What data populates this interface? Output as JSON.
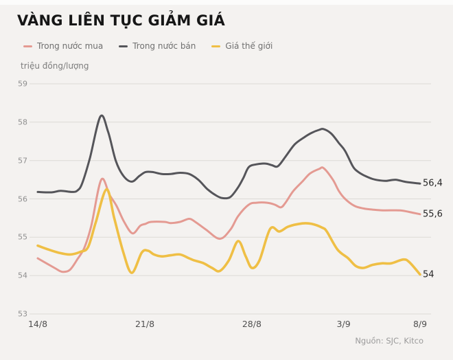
{
  "title": "VÀNG LIÊN TỤC GIẢM GIÁ",
  "unit_label": "triệu đồng/lượng",
  "source": "Nguồn: SJC, Kitco",
  "colors": {
    "background": "#f4f2f0",
    "grid": "#dcdad6",
    "buy": "#e49a92",
    "sell": "#55555a",
    "world": "#efbf45"
  },
  "legend": [
    {
      "label": "Trong nước mua",
      "color": "#e49a92"
    },
    {
      "label": "Trong nước bán",
      "color": "#55555a"
    },
    {
      "label": "Giá thế giới",
      "color": "#efbf45"
    }
  ],
  "chart_data": {
    "type": "line",
    "title": "VÀNG LIÊN TỤC GIẢM GIÁ",
    "ylabel": "triệu đồng/lượng",
    "ylim": [
      53,
      59
    ],
    "yticks": [
      59,
      58,
      57,
      56,
      55,
      54,
      53
    ],
    "grid": true,
    "legend_position": "top-left",
    "x_unit": "days from 14/8 (0) to 8/9 (25)",
    "xticks": [
      {
        "day": 0,
        "label": "14/8"
      },
      {
        "day": 7,
        "label": "21/8"
      },
      {
        "day": 14,
        "label": "28/8"
      },
      {
        "day": 20,
        "label": "3/9"
      },
      {
        "day": 25,
        "label": "8/9"
      }
    ],
    "series": [
      {
        "id": "buy",
        "name": "Trong nước mua",
        "color": "#e49a92",
        "end_label": "55,6",
        "points": [
          [
            0,
            54.45
          ],
          [
            1.1,
            54.2
          ],
          [
            1.6,
            54.1
          ],
          [
            2.1,
            54.15
          ],
          [
            2.6,
            54.43
          ],
          [
            3.05,
            54.73
          ],
          [
            3.5,
            55.3
          ],
          [
            4.15,
            56.5
          ],
          [
            4.7,
            56.1
          ],
          [
            5.15,
            55.82
          ],
          [
            5.65,
            55.4
          ],
          [
            6.2,
            55.1
          ],
          [
            6.7,
            55.3
          ],
          [
            7.05,
            55.35
          ],
          [
            7.4,
            55.4
          ],
          [
            8.3,
            55.4
          ],
          [
            8.7,
            55.37
          ],
          [
            9.3,
            55.4
          ],
          [
            9.9,
            55.48
          ],
          [
            10.3,
            55.4
          ],
          [
            11,
            55.2
          ],
          [
            11.9,
            54.96
          ],
          [
            12.6,
            55.2
          ],
          [
            13.1,
            55.55
          ],
          [
            13.8,
            55.85
          ],
          [
            14.3,
            55.9
          ],
          [
            15,
            55.9
          ],
          [
            15.5,
            55.85
          ],
          [
            15.9,
            55.78
          ],
          [
            16.2,
            55.9
          ],
          [
            16.7,
            56.2
          ],
          [
            17.3,
            56.45
          ],
          [
            17.8,
            56.66
          ],
          [
            18.4,
            56.78
          ],
          [
            18.7,
            56.8
          ],
          [
            19.3,
            56.5
          ],
          [
            19.7,
            56.2
          ],
          [
            20.1,
            56.0
          ],
          [
            20.7,
            55.82
          ],
          [
            21.3,
            55.75
          ],
          [
            21.9,
            55.72
          ],
          [
            22.6,
            55.7
          ],
          [
            23.7,
            55.7
          ],
          [
            24.4,
            55.65
          ],
          [
            25,
            55.6
          ]
        ]
      },
      {
        "id": "sell",
        "name": "Trong nước bán",
        "color": "#55555a",
        "end_label": "56,4",
        "points": [
          [
            0,
            56.18
          ],
          [
            0.9,
            56.17
          ],
          [
            1.5,
            56.21
          ],
          [
            2.25,
            56.18
          ],
          [
            2.6,
            56.22
          ],
          [
            2.9,
            56.4
          ],
          [
            3.4,
            57.05
          ],
          [
            4.1,
            58.15
          ],
          [
            4.6,
            57.75
          ],
          [
            5.1,
            57.0
          ],
          [
            5.6,
            56.6
          ],
          [
            6.15,
            56.45
          ],
          [
            6.65,
            56.6
          ],
          [
            7.05,
            56.7
          ],
          [
            7.5,
            56.7
          ],
          [
            8.1,
            56.65
          ],
          [
            8.7,
            56.65
          ],
          [
            9.3,
            56.68
          ],
          [
            9.9,
            56.65
          ],
          [
            10.5,
            56.5
          ],
          [
            11.1,
            56.25
          ],
          [
            11.7,
            56.08
          ],
          [
            12.1,
            56.02
          ],
          [
            12.6,
            56.05
          ],
          [
            13.1,
            56.3
          ],
          [
            13.45,
            56.55
          ],
          [
            13.8,
            56.83
          ],
          [
            14.3,
            56.9
          ],
          [
            14.9,
            56.92
          ],
          [
            15.3,
            56.88
          ],
          [
            15.7,
            56.85
          ],
          [
            16.2,
            57.1
          ],
          [
            16.8,
            57.42
          ],
          [
            17.4,
            57.6
          ],
          [
            17.9,
            57.72
          ],
          [
            18.4,
            57.8
          ],
          [
            18.7,
            57.82
          ],
          [
            19.2,
            57.7
          ],
          [
            19.7,
            57.45
          ],
          [
            20.1,
            57.25
          ],
          [
            20.6,
            56.85
          ],
          [
            20.9,
            56.72
          ],
          [
            21.3,
            56.62
          ],
          [
            21.9,
            56.52
          ],
          [
            22.4,
            56.48
          ],
          [
            22.8,
            56.47
          ],
          [
            23.4,
            56.5
          ],
          [
            24.1,
            56.44
          ],
          [
            25,
            56.4
          ]
        ]
      },
      {
        "id": "world",
        "name": "Giá thế giới",
        "color": "#efbf45",
        "end_label": "54",
        "points": [
          [
            0,
            54.78
          ],
          [
            0.7,
            54.68
          ],
          [
            1.35,
            54.6
          ],
          [
            2.1,
            54.55
          ],
          [
            2.8,
            54.62
          ],
          [
            3.3,
            54.75
          ],
          [
            3.8,
            55.4
          ],
          [
            4.5,
            56.25
          ],
          [
            5,
            55.5
          ],
          [
            5.6,
            54.6
          ],
          [
            6.15,
            54.07
          ],
          [
            6.8,
            54.6
          ],
          [
            7.2,
            54.65
          ],
          [
            7.6,
            54.55
          ],
          [
            8.1,
            54.5
          ],
          [
            8.7,
            54.53
          ],
          [
            9.3,
            54.55
          ],
          [
            9.9,
            54.45
          ],
          [
            10.2,
            54.4
          ],
          [
            10.8,
            54.33
          ],
          [
            11.4,
            54.2
          ],
          [
            11.9,
            54.12
          ],
          [
            12.5,
            54.4
          ],
          [
            13.1,
            54.9
          ],
          [
            13.6,
            54.5
          ],
          [
            14,
            54.2
          ],
          [
            14.5,
            54.4
          ],
          [
            15.2,
            55.22
          ],
          [
            15.8,
            55.15
          ],
          [
            16.4,
            55.28
          ],
          [
            17.3,
            55.36
          ],
          [
            17.9,
            55.35
          ],
          [
            18.6,
            55.25
          ],
          [
            18.9,
            55.15
          ],
          [
            19.6,
            54.68
          ],
          [
            20.3,
            54.45
          ],
          [
            20.8,
            54.25
          ],
          [
            21.3,
            54.2
          ],
          [
            21.9,
            54.28
          ],
          [
            22.5,
            54.32
          ],
          [
            23.1,
            54.32
          ],
          [
            23.9,
            54.42
          ],
          [
            24.3,
            54.35
          ],
          [
            25,
            54.03
          ]
        ]
      }
    ]
  }
}
